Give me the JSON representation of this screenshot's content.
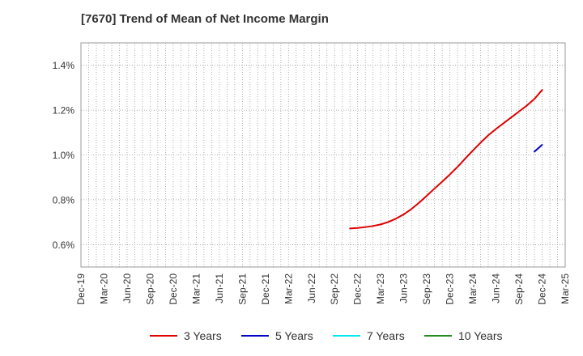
{
  "chart_data": {
    "type": "line",
    "title": "[7670]  Trend of Mean of Net Income Margin",
    "xlabel": "",
    "ylabel": "",
    "x_ticks": [
      "Dec-19",
      "Mar-20",
      "Jun-20",
      "Sep-20",
      "Dec-20",
      "Mar-21",
      "Jun-21",
      "Sep-21",
      "Dec-21",
      "Mar-22",
      "Jun-22",
      "Sep-22",
      "Dec-22",
      "Mar-23",
      "Jun-23",
      "Sep-23",
      "Dec-23",
      "Mar-24",
      "Jun-24",
      "Sep-24",
      "Dec-24",
      "Mar-25"
    ],
    "y_ticks": [
      "0.6%",
      "0.8%",
      "1.0%",
      "1.2%",
      "1.4%"
    ],
    "y_tick_values": [
      0.6,
      0.8,
      1.0,
      1.2,
      1.4
    ],
    "ylim": [
      0.5,
      1.5
    ],
    "grid": true,
    "legend_position": "bottom",
    "series": [
      {
        "name": "3 Years",
        "color": "#e00000",
        "points": [
          [
            "Nov-22",
            0.672
          ],
          [
            "Dec-22",
            0.674
          ],
          [
            "Jan-23",
            0.678
          ],
          [
            "Feb-23",
            0.683
          ],
          [
            "Mar-23",
            0.69
          ],
          [
            "Apr-23",
            0.701
          ],
          [
            "May-23",
            0.716
          ],
          [
            "Jun-23",
            0.735
          ],
          [
            "Jul-23",
            0.759
          ],
          [
            "Aug-23",
            0.787
          ],
          [
            "Sep-23",
            0.818
          ],
          [
            "Oct-23",
            0.85
          ],
          [
            "Nov-23",
            0.881
          ],
          [
            "Dec-23",
            0.913
          ],
          [
            "Jan-24",
            0.947
          ],
          [
            "Feb-24",
            0.984
          ],
          [
            "Mar-24",
            1.02
          ],
          [
            "Apr-24",
            1.055
          ],
          [
            "May-24",
            1.088
          ],
          [
            "Jun-24",
            1.116
          ],
          [
            "Jul-24",
            1.142
          ],
          [
            "Aug-24",
            1.168
          ],
          [
            "Sep-24",
            1.194
          ],
          [
            "Oct-24",
            1.22
          ],
          [
            "Nov-24",
            1.25
          ],
          [
            "Dec-24",
            1.29
          ]
        ]
      },
      {
        "name": "5 Years",
        "color": "#0000cc",
        "points": [
          [
            "Nov-24",
            1.015
          ],
          [
            "Dec-24",
            1.045
          ]
        ]
      },
      {
        "name": "7 Years",
        "color": "#00e5ee",
        "points": []
      },
      {
        "name": "10 Years",
        "color": "#228b22",
        "points": []
      }
    ]
  }
}
